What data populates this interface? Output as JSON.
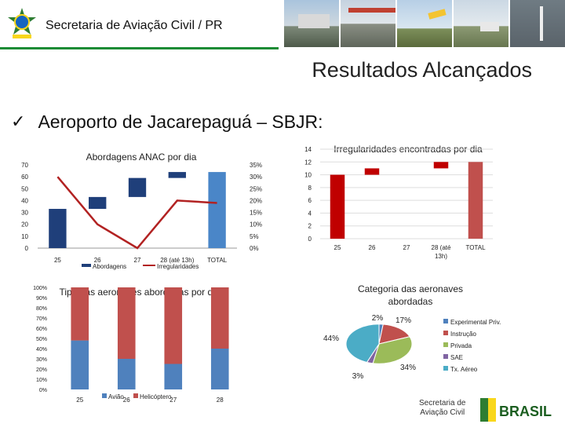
{
  "header": {
    "title": "Secretaria de Aviação Civil / PR"
  },
  "page": {
    "subtitle": "Resultados Alcançados",
    "bullet": "Aeroporto de Jacarepaguá – SBJR:"
  },
  "footer": {
    "line1": "Secretaria de",
    "line2": "Aviação Civil",
    "brand": "BRASIL"
  },
  "chart_data": [
    {
      "type": "bar-line",
      "title": "Abordagens ANAC por dia",
      "categories": [
        "25",
        "26",
        "27",
        "28 (até 13h)",
        "TOTAL"
      ],
      "y_left_ticks": [
        "70",
        "60",
        "50",
        "40",
        "30",
        "20",
        "10",
        "0"
      ],
      "y_right_ticks": [
        "35%",
        "30%",
        "25%",
        "20%",
        "15%",
        "10%",
        "5%",
        "0%"
      ],
      "ylim_left": [
        0,
        70
      ],
      "ylim_right": [
        0,
        35
      ],
      "bars_waterfall": [
        {
          "category": "25",
          "start": 0,
          "end": 33
        },
        {
          "category": "26",
          "start": 33,
          "end": 43
        },
        {
          "category": "27",
          "start": 43,
          "end": 59
        },
        {
          "category": "28 (até 13h)",
          "start": 59,
          "end": 64
        },
        {
          "category": "TOTAL",
          "start": 0,
          "end": 64
        }
      ],
      "line": {
        "name": "Irregularidades",
        "values_pct": [
          30,
          10,
          0,
          20,
          19
        ]
      },
      "legend": [
        "Abordagens",
        "Irregularidades"
      ],
      "colors": {
        "bars": "#1f3f7a",
        "total": "#4a86c8",
        "line": "#b22222"
      }
    },
    {
      "type": "bar",
      "title": "Irregularidades encontradas por dia",
      "categories": [
        "25",
        "26",
        "27",
        "28 (até 13h)",
        "TOTAL"
      ],
      "y_ticks": [
        "14",
        "12",
        "10",
        "8",
        "6",
        "4",
        "2",
        "0"
      ],
      "ylim": [
        0,
        14
      ],
      "bars_waterfall": [
        {
          "category": "25",
          "start": 0,
          "end": 10
        },
        {
          "category": "26",
          "start": 10,
          "end": 11
        },
        {
          "category": "27",
          "start": 11,
          "end": 11
        },
        {
          "category": "28 (até 13h)",
          "start": 11,
          "end": 12
        },
        {
          "category": "TOTAL",
          "start": 0,
          "end": 12
        }
      ],
      "colors": {
        "bars": "#c00000",
        "total": "#c0504d"
      }
    },
    {
      "type": "bar",
      "title": "Tipo das aeronaves abordadas por dia",
      "categories": [
        "25",
        "26",
        "27",
        "28"
      ],
      "y_ticks": [
        "100%",
        "90%",
        "80%",
        "70%",
        "60%",
        "50%",
        "40%",
        "30%",
        "20%",
        "10%",
        "0%"
      ],
      "series": [
        {
          "name": "Avião",
          "values": [
            48,
            30,
            25,
            40
          ]
        },
        {
          "name": "Helicóptero",
          "values": [
            52,
            70,
            75,
            60
          ]
        }
      ],
      "legend": [
        "Avião",
        "Helicóptero"
      ],
      "colors": {
        "aviao": "#4f81bd",
        "heli": "#c0504d"
      }
    },
    {
      "type": "pie",
      "title": "Categoria das aeronaves abordadas",
      "slices": [
        {
          "name": "Experimental Priv.",
          "value": 2,
          "label": "2%",
          "color": "#4f81bd"
        },
        {
          "name": "Instrução",
          "value": 17,
          "label": "17%",
          "color": "#c0504d"
        },
        {
          "name": "Privada",
          "value": 34,
          "label": "34%",
          "color": "#9bbb59"
        },
        {
          "name": "SAE",
          "value": 3,
          "label": "3%",
          "color": "#8064a2"
        },
        {
          "name": "Tx. Aéreo",
          "value": 44,
          "label": "44%",
          "color": "#4bacc6"
        }
      ]
    }
  ]
}
